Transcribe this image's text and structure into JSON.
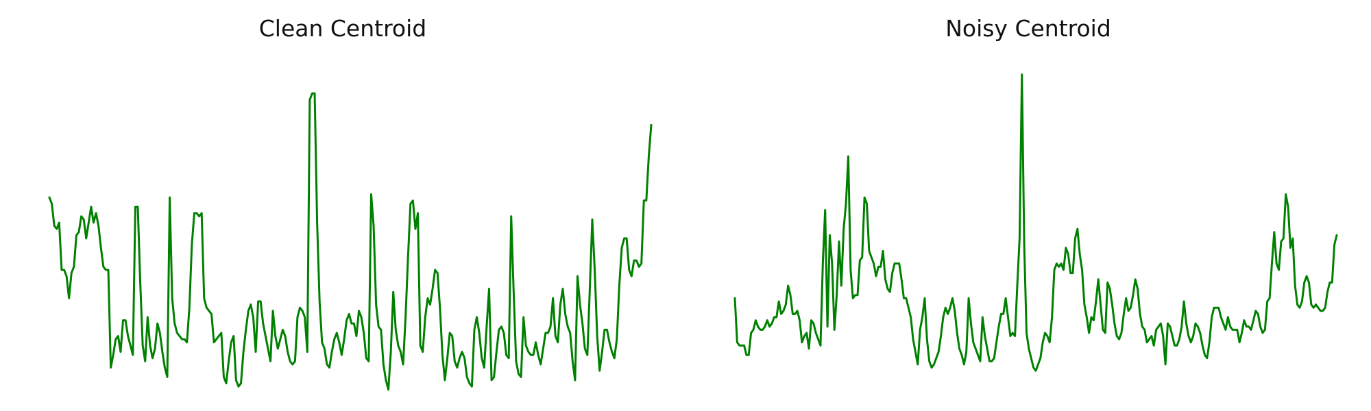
{
  "line_color": "#008000",
  "chart_data": [
    {
      "type": "line",
      "title": "Clean Centroid",
      "axes_visible": false,
      "grid": false,
      "ylim": [
        0,
        100
      ],
      "series": [
        {
          "values": [
            58,
            56,
            49,
            48,
            50,
            35,
            35,
            33,
            26,
            34,
            36,
            46,
            47,
            52,
            51,
            45,
            50,
            55,
            50,
            53,
            49,
            42,
            36,
            35,
            35,
            4,
            8,
            13,
            14,
            9,
            19,
            19,
            14,
            11,
            8,
            55,
            55,
            31,
            11,
            6,
            20,
            11,
            7,
            10,
            18,
            15,
            9,
            4,
            1,
            58,
            26,
            18,
            15,
            14,
            13,
            13,
            12,
            23,
            43,
            53,
            53,
            52,
            53,
            26,
            23,
            22,
            21,
            12,
            13,
            14,
            15,
            1,
            -1,
            6,
            12,
            14,
            0,
            -2,
            -1,
            9,
            16,
            22,
            24,
            20,
            9,
            25,
            25,
            18,
            14,
            10,
            6,
            22,
            14,
            10,
            13,
            16,
            14,
            9,
            6,
            5,
            6,
            20,
            23,
            22,
            20,
            9,
            89,
            91,
            91,
            50,
            25,
            12,
            10,
            5,
            4,
            9,
            13,
            15,
            12,
            8,
            13,
            19,
            21,
            18,
            18,
            14,
            22,
            20,
            15,
            7,
            6,
            59,
            49,
            24,
            17,
            16,
            5,
            0,
            -3,
            9,
            28,
            16,
            11,
            9,
            5,
            20,
            39,
            56,
            57,
            48,
            53,
            11,
            9,
            20,
            26,
            24,
            29,
            35,
            34,
            23,
            8,
            0,
            7,
            15,
            14,
            6,
            4,
            7,
            9,
            7,
            1,
            -1,
            -2,
            16,
            20,
            15,
            7,
            4,
            17,
            29,
            0,
            1,
            9,
            16,
            17,
            15,
            8,
            7,
            52,
            28,
            6,
            2,
            1,
            20,
            11,
            9,
            8,
            8,
            12,
            8,
            5,
            10,
            15,
            15,
            17,
            26,
            14,
            12,
            24,
            29,
            21,
            17,
            15,
            6,
            0,
            33,
            24,
            18,
            10,
            8,
            29,
            51,
            35,
            14,
            3,
            9,
            16,
            16,
            12,
            9,
            7,
            13,
            30,
            42,
            45,
            45,
            35,
            33,
            38,
            38,
            36,
            37,
            57,
            57,
            71,
            81
          ]
        }
      ]
    },
    {
      "type": "line",
      "title": "Noisy Centroid",
      "axes_visible": false,
      "grid": false,
      "ylim": [
        0,
        100
      ],
      "series": [
        {
          "values": [
            26,
            12,
            11,
            11,
            11,
            8,
            8,
            15,
            16,
            19,
            17,
            16,
            16,
            17,
            19,
            17,
            18,
            20,
            20,
            25,
            21,
            22,
            24,
            30,
            27,
            21,
            21,
            22,
            19,
            12,
            14,
            15,
            10,
            19,
            18,
            15,
            13,
            11,
            37,
            54,
            17,
            46,
            37,
            16,
            27,
            44,
            30,
            48,
            56,
            71,
            35,
            26,
            27,
            27,
            38,
            39,
            58,
            56,
            41,
            39,
            37,
            33,
            36,
            36,
            41,
            32,
            29,
            28,
            34,
            37,
            37,
            37,
            32,
            26,
            26,
            23,
            20,
            13,
            9,
            5,
            16,
            20,
            26,
            13,
            6,
            4,
            5,
            7,
            9,
            14,
            20,
            23,
            21,
            23,
            26,
            22,
            15,
            10,
            8,
            5,
            9,
            26,
            18,
            12,
            10,
            8,
            6,
            20,
            14,
            10,
            6,
            6,
            7,
            12,
            17,
            21,
            21,
            26,
            20,
            14,
            15,
            14,
            30,
            45,
            97,
            43,
            15,
            10,
            7,
            4,
            3,
            5,
            7,
            12,
            15,
            14,
            12,
            20,
            35,
            37,
            36,
            37,
            35,
            42,
            40,
            34,
            34,
            45,
            48,
            40,
            35,
            24,
            20,
            15,
            20,
            19,
            25,
            32,
            24,
            16,
            15,
            31,
            29,
            24,
            18,
            14,
            13,
            15,
            21,
            26,
            22,
            23,
            27,
            32,
            29,
            21,
            17,
            16,
            12,
            13,
            14,
            11,
            16,
            17,
            18,
            14,
            5,
            18,
            17,
            14,
            11,
            11,
            13,
            17,
            25,
            18,
            14,
            12,
            14,
            18,
            17,
            15,
            11,
            8,
            7,
            12,
            20,
            23,
            23,
            23,
            20,
            18,
            16,
            20,
            17,
            16,
            16,
            16,
            12,
            15,
            19,
            17,
            17,
            16,
            19,
            22,
            21,
            17,
            15,
            16,
            25,
            26,
            37,
            47,
            37,
            35,
            44,
            45,
            59,
            55,
            42,
            45,
            30,
            24,
            23,
            25,
            31,
            33,
            31,
            24,
            23,
            24,
            23,
            22,
            22,
            23,
            28,
            31,
            31,
            43,
            46
          ]
        }
      ]
    }
  ]
}
